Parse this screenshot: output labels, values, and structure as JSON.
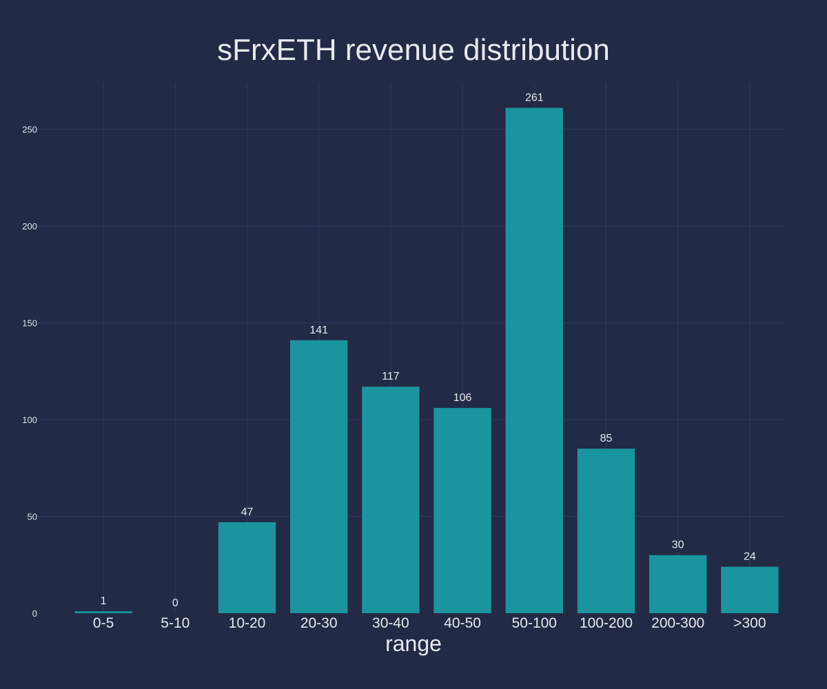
{
  "chart_data": {
    "type": "bar",
    "title": "sFrxETH revenue distribution",
    "xlabel": "range",
    "ylabel": "",
    "categories": [
      "0-5",
      "5-10",
      "10-20",
      "20-30",
      "30-40",
      "40-50",
      "50-100",
      "100-200",
      "200-300",
      ">300"
    ],
    "values": [
      1,
      0,
      47,
      141,
      117,
      106,
      261,
      85,
      30,
      24
    ],
    "ylim": [
      0,
      274
    ],
    "yticks": [
      0,
      50,
      100,
      150,
      200,
      250
    ],
    "grid": true,
    "legend": "none",
    "colors": {
      "background": "#222a46",
      "bar": "#1a959e",
      "grid": "#2e3a5c",
      "text": "#e7e9ef"
    }
  }
}
